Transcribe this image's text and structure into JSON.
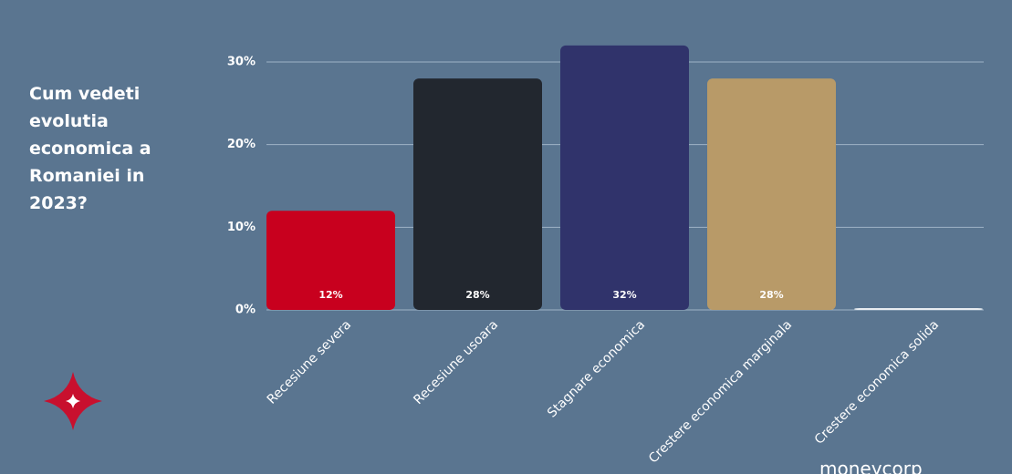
{
  "chart_data": {
    "type": "bar",
    "title": "Cum vedeti evolutia economica a Romaniei in 2023?",
    "categories": [
      "Recesiune severa",
      "Recesiune usoara",
      "Stagnare economica",
      "Crestere economica marginala",
      "Crestere economica solida"
    ],
    "values": [
      12,
      28,
      32,
      28,
      0
    ],
    "value_labels": [
      "12%",
      "28%",
      "32%",
      "28%",
      null
    ],
    "colors": [
      "#c8001e",
      "#22272f",
      "#30336b",
      "#b89a68",
      "#e8ecf0"
    ],
    "ylim": [
      0,
      33
    ],
    "yticks": [
      {
        "value": 0,
        "label": "0%"
      },
      {
        "value": 10,
        "label": "10%"
      },
      {
        "value": 20,
        "label": "20%"
      },
      {
        "value": 30,
        "label": "30%"
      }
    ],
    "grid": true
  },
  "brand": "moneycorp"
}
